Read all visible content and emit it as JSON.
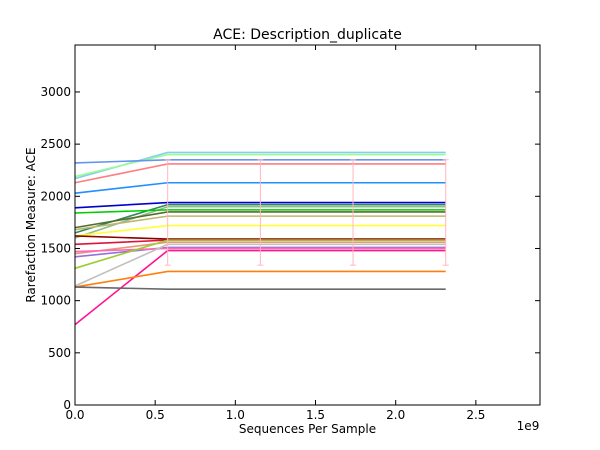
{
  "chart_data": {
    "type": "line",
    "title": "ACE: Description_duplicate",
    "xlabel": "Sequences Per Sample",
    "ylabel": "Rarefaction Measure: ACE",
    "x_offset_label": "1e9",
    "xlim": [
      0,
      2.9
    ],
    "ylim": [
      0,
      3450
    ],
    "grid": false,
    "x_ticks": [
      0.0,
      0.5,
      1.0,
      1.5,
      2.0,
      2.5
    ],
    "x_tick_labels": [
      "0.0",
      "0.5",
      "1.0",
      "1.5",
      "2.0",
      "2.5"
    ],
    "y_ticks": [
      0,
      500,
      1000,
      1500,
      2000,
      2500,
      3000
    ],
    "y_tick_labels": [
      "0",
      "500",
      "1000",
      "1500",
      "2000",
      "2500",
      "3000"
    ],
    "x": [
      0.0,
      0.578,
      1.156,
      1.734,
      2.312
    ],
    "series": [
      {
        "color": "#87ceeb",
        "values": [
          2170,
          2420,
          2420,
          2420,
          2420
        ]
      },
      {
        "color": "#98fb98",
        "values": [
          2190,
          2400,
          2400,
          2400,
          2400
        ]
      },
      {
        "color": "#6495ed",
        "values": [
          2320,
          2350,
          2350,
          2350,
          2350
        ]
      },
      {
        "color": "#ff7f7f",
        "values": [
          2130,
          2310,
          2310,
          2310,
          2310
        ]
      },
      {
        "color": "#1e90ff",
        "values": [
          2030,
          2130,
          2130,
          2130,
          2130
        ]
      },
      {
        "color": "#0000cd",
        "values": [
          1890,
          1940,
          1940,
          1940,
          1940
        ]
      },
      {
        "color": "#2e8b57",
        "values": [
          1650,
          1920,
          1920,
          1920,
          1920
        ]
      },
      {
        "color": "#8fbc8f",
        "values": [
          1600,
          1900,
          1900,
          1900,
          1900
        ]
      },
      {
        "color": "#00cc00",
        "values": [
          1840,
          1870,
          1870,
          1870,
          1870
        ]
      },
      {
        "color": "#556b2f",
        "values": [
          1700,
          1850,
          1850,
          1850,
          1850
        ]
      },
      {
        "color": "#bdb76b",
        "values": [
          1680,
          1810,
          1810,
          1810,
          1810
        ]
      },
      {
        "color": "#ffff33",
        "values": [
          1620,
          1720,
          1720,
          1720,
          1720
        ]
      },
      {
        "color": "#8b0000",
        "values": [
          1620,
          1590,
          1590,
          1590,
          1590
        ]
      },
      {
        "color": "#dc143c",
        "values": [
          1540,
          1580,
          1580,
          1580,
          1580
        ]
      },
      {
        "color": "#e9967a",
        "values": [
          1450,
          1560,
          1560,
          1560,
          1560
        ]
      },
      {
        "color": "#9370db",
        "values": [
          1420,
          1510,
          1510,
          1510,
          1510
        ]
      },
      {
        "color": "#ff69b4",
        "values": [
          1470,
          1500,
          1500,
          1500,
          1500
        ]
      },
      {
        "color": "#c0c0c0",
        "values": [
          1140,
          1540,
          1540,
          1540,
          1540
        ]
      },
      {
        "color": "#9acd32",
        "values": [
          1310,
          1580,
          1580,
          1580,
          1580
        ]
      },
      {
        "color": "#ff1493",
        "values": [
          770,
          1480,
          1480,
          1480,
          1480
        ]
      },
      {
        "color": "#ff7f0e",
        "values": [
          1130,
          1280,
          1280,
          1280,
          1280
        ]
      },
      {
        "color": "#696969",
        "values": [
          1130,
          1110,
          1110,
          1110,
          1110
        ]
      }
    ],
    "error_bars": {
      "color": "#ffb6c1",
      "points": [
        {
          "x": 0.578,
          "low": 1340,
          "high": 2350
        },
        {
          "x": 1.156,
          "low": 1340,
          "high": 2350
        },
        {
          "x": 1.734,
          "low": 1340,
          "high": 2350
        },
        {
          "x": 2.312,
          "low": 1340,
          "high": 2350
        }
      ]
    }
  }
}
